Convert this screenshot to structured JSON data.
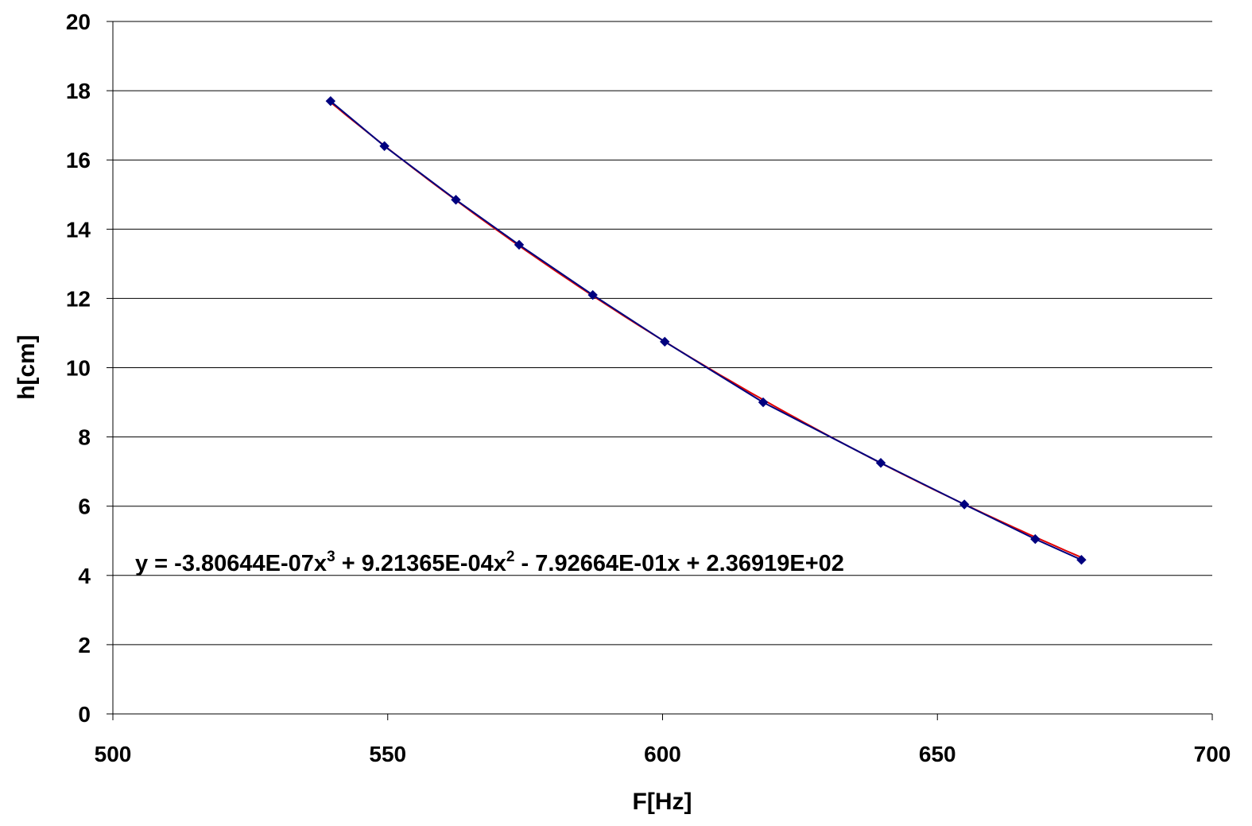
{
  "chart_data": {
    "type": "scatter",
    "title": "",
    "xlabel": "F[Hz]",
    "ylabel": "h[cm]",
    "xlim": [
      500,
      700
    ],
    "ylim": [
      0,
      20
    ],
    "x_ticks": [
      "500",
      "550",
      "600",
      "650",
      "700"
    ],
    "y_ticks": [
      "0",
      "2",
      "4",
      "6",
      "8",
      "10",
      "12",
      "14",
      "16",
      "18",
      "20"
    ],
    "grid": "horizontal",
    "series": [
      {
        "x": [
          539.6,
          549.4,
          562.4,
          573.9,
          587.3,
          600.4,
          618.3,
          639.7,
          654.9,
          667.8,
          676.2
        ],
        "y": [
          17.7,
          16.4,
          14.85,
          13.55,
          12.1,
          10.75,
          9.0,
          7.25,
          6.05,
          5.05,
          4.45
        ],
        "marker": "diamond",
        "color": "#00007f"
      }
    ],
    "trendline": {
      "type": "polynomial",
      "order": 3,
      "color": "#e00000",
      "coefficients": [
        -3.80644e-07,
        0.000921365,
        -0.792664,
        236.919
      ],
      "equation": {
        "p1": "y = -3.80644E-07x",
        "sup1": "3",
        "p2": " + 9.21365E-04x",
        "sup2": "2",
        "p3": " - 7.92664E-01x + 2.36919E+02"
      }
    }
  }
}
